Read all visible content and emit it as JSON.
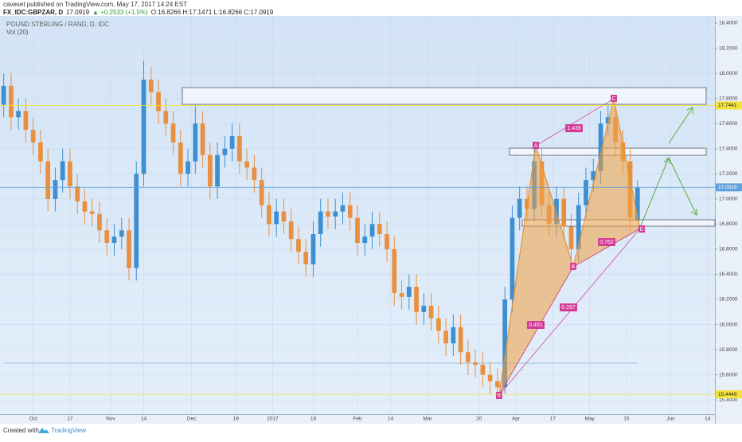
{
  "header": {
    "publisher": "caveset published on TradingView.com, May 17, 2017 14:24 EST",
    "symbol": "FX_IDC:GBPZAR, D",
    "last": "17.0919",
    "change": "▲ +0.2533 (+1.5%)",
    "ohlc": "O:16.8266 H:17.1471 L:16.8266 C:17.0919"
  },
  "chart_data": {
    "type": "candlestick",
    "title": "POUND STERLING / RAND, D, IDC",
    "subtitle": "Vol (20)",
    "up_color": "#3d8fd1",
    "down_color": "#e8903f",
    "x": [
      0,
      2,
      4,
      6,
      8,
      10,
      12,
      14,
      16,
      18,
      20,
      22,
      24,
      26,
      28,
      30,
      32,
      34,
      36,
      38,
      40,
      42,
      44,
      46,
      48,
      50,
      52,
      54,
      56,
      58,
      60,
      62,
      64,
      66,
      68,
      70,
      72,
      74,
      76,
      78,
      80,
      82,
      84,
      86,
      88,
      90,
      92,
      94,
      96,
      98,
      100,
      102,
      104,
      106,
      108,
      110,
      112,
      114,
      116,
      118,
      120,
      122,
      124,
      126,
      128,
      130,
      132,
      134,
      136,
      138,
      140,
      142,
      144,
      146,
      148,
      150,
      152,
      154,
      156,
      158,
      160,
      162,
      164,
      166,
      168,
      170,
      172
    ],
    "open": [
      17.75,
      17.9,
      17.65,
      17.7,
      17.55,
      17.45,
      17.3,
      17.0,
      17.15,
      17.3,
      17.1,
      16.98,
      16.9,
      16.88,
      16.75,
      16.65,
      16.7,
      16.75,
      16.45,
      17.2,
      17.95,
      17.85,
      17.7,
      17.6,
      17.45,
      17.2,
      17.3,
      17.6,
      17.35,
      17.1,
      17.35,
      17.4,
      17.5,
      17.3,
      17.25,
      17.15,
      16.95,
      16.8,
      16.9,
      16.82,
      16.68,
      16.58,
      16.48,
      16.72,
      16.9,
      16.86,
      16.9,
      16.95,
      16.85,
      16.65,
      16.7,
      16.8,
      16.72,
      16.6,
      16.25,
      16.22,
      16.3,
      16.1,
      16.15,
      16.05,
      15.95,
      15.85,
      15.98,
      15.78,
      15.7,
      15.68,
      15.6,
      15.55,
      15.5,
      16.2,
      16.85,
      17.0,
      16.92,
      17.3,
      16.95,
      16.8,
      17.0,
      16.78,
      16.6,
      16.95,
      17.15,
      17.22,
      17.6,
      17.65,
      17.45,
      17.3,
      16.8266
    ],
    "high": [
      18.0,
      18.0,
      17.8,
      17.8,
      17.65,
      17.55,
      17.4,
      17.25,
      17.4,
      17.4,
      17.2,
      17.08,
      17.0,
      16.98,
      16.85,
      16.8,
      16.85,
      16.85,
      17.3,
      18.1,
      18.05,
      17.95,
      17.8,
      17.7,
      17.55,
      17.4,
      17.75,
      17.7,
      17.45,
      17.45,
      17.5,
      17.6,
      17.6,
      17.4,
      17.35,
      17.25,
      17.05,
      17.0,
      17.0,
      16.92,
      16.78,
      16.68,
      16.82,
      17.0,
      17.0,
      17.0,
      17.05,
      17.05,
      16.95,
      16.8,
      16.9,
      16.9,
      16.82,
      16.7,
      16.35,
      16.4,
      16.4,
      16.25,
      16.25,
      16.15,
      16.05,
      16.08,
      16.08,
      15.88,
      15.8,
      15.78,
      15.7,
      15.65,
      16.3,
      16.95,
      17.1,
      17.1,
      17.4,
      17.4,
      17.05,
      17.1,
      17.1,
      16.88,
      17.05,
      17.25,
      17.32,
      17.7,
      17.7441,
      17.75,
      17.55,
      17.4,
      17.1471
    ],
    "low": [
      17.65,
      17.55,
      17.55,
      17.45,
      17.35,
      17.2,
      16.9,
      16.9,
      17.05,
      17.0,
      16.88,
      16.8,
      16.78,
      16.65,
      16.55,
      16.55,
      16.6,
      16.35,
      16.35,
      17.1,
      17.75,
      17.6,
      17.5,
      17.35,
      17.1,
      17.1,
      17.2,
      17.25,
      17.0,
      17.0,
      17.25,
      17.3,
      17.2,
      17.15,
      17.05,
      16.85,
      16.7,
      16.7,
      16.72,
      16.58,
      16.48,
      16.38,
      16.38,
      16.62,
      16.76,
      16.76,
      16.8,
      16.75,
      16.55,
      16.55,
      16.6,
      16.62,
      16.5,
      16.15,
      16.12,
      16.12,
      16.0,
      16.0,
      15.95,
      15.85,
      15.75,
      15.75,
      15.68,
      15.6,
      15.58,
      15.5,
      15.45,
      15.4449,
      15.45,
      16.1,
      16.75,
      16.82,
      16.82,
      16.85,
      16.7,
      16.7,
      16.68,
      16.5,
      16.5,
      16.85,
      17.05,
      17.12,
      17.5,
      17.35,
      17.2,
      16.75,
      16.8266
    ],
    "close": [
      17.9,
      17.65,
      17.7,
      17.55,
      17.45,
      17.3,
      17.0,
      17.15,
      17.3,
      17.1,
      16.98,
      16.9,
      16.88,
      16.75,
      16.65,
      16.7,
      16.75,
      16.45,
      17.2,
      17.95,
      17.85,
      17.7,
      17.6,
      17.45,
      17.2,
      17.3,
      17.6,
      17.35,
      17.1,
      17.35,
      17.4,
      17.5,
      17.3,
      17.25,
      17.15,
      16.95,
      16.8,
      16.9,
      16.82,
      16.68,
      16.58,
      16.48,
      16.72,
      16.9,
      16.86,
      16.9,
      16.95,
      16.85,
      16.65,
      16.7,
      16.8,
      16.72,
      16.6,
      16.25,
      16.22,
      16.3,
      16.1,
      16.15,
      16.05,
      15.95,
      15.85,
      15.98,
      15.78,
      15.7,
      15.68,
      15.6,
      15.55,
      15.5,
      16.2,
      16.85,
      17.0,
      16.92,
      17.3,
      16.95,
      16.8,
      17.0,
      16.78,
      16.6,
      16.95,
      17.15,
      17.22,
      17.6,
      17.65,
      17.45,
      17.3,
      16.85,
      17.0919
    ],
    "xlim": [
      -1,
      193
    ],
    "xticks": [
      {
        "value": 8,
        "label": "Oct"
      },
      {
        "value": 18,
        "label": "17"
      },
      {
        "value": 29,
        "label": "Nov"
      },
      {
        "value": 38,
        "label": "14"
      },
      {
        "value": 51,
        "label": "Dec"
      },
      {
        "value": 63,
        "label": "19"
      },
      {
        "value": 73,
        "label": "2017"
      },
      {
        "value": 84,
        "label": "16"
      },
      {
        "value": 96,
        "label": "Feb"
      },
      {
        "value": 105,
        "label": "14"
      },
      {
        "value": 115,
        "label": "Mar"
      },
      {
        "value": 129,
        "label": "20"
      },
      {
        "value": 139,
        "label": "Apr"
      },
      {
        "value": 149,
        "label": "17"
      },
      {
        "value": 159,
        "label": "May"
      },
      {
        "value": 169,
        "label": "15"
      },
      {
        "value": 181,
        "label": "Jun"
      },
      {
        "value": 191,
        "label": "14"
      }
    ],
    "ylim": [
      15.287,
      18.457
    ],
    "yticks": [
      {
        "value": 18.4,
        "label": "18.4000"
      },
      {
        "value": 18.2,
        "label": "18.2000"
      },
      {
        "value": 18.0,
        "label": "18.0000"
      },
      {
        "value": 17.8,
        "label": "17.8000"
      },
      {
        "value": 17.6,
        "label": "17.6000"
      },
      {
        "value": 17.4,
        "label": "17.4000"
      },
      {
        "value": 17.2,
        "label": "17.2000"
      },
      {
        "value": 17.0,
        "label": "17.0000"
      },
      {
        "value": 16.8,
        "label": "16.8000"
      },
      {
        "value": 16.6,
        "label": "16.6000"
      },
      {
        "value": 16.4,
        "label": "16.4000"
      },
      {
        "value": 16.2,
        "label": "16.2000"
      },
      {
        "value": 16.0,
        "label": "16.0000"
      },
      {
        "value": 15.8,
        "label": "15.8000"
      },
      {
        "value": 15.6,
        "label": "15.6000"
      },
      {
        "value": 15.4,
        "label": "15.4000"
      }
    ],
    "price_lines": [
      {
        "value": 17.7441,
        "color": "#f3e33a"
      },
      {
        "value": 17.0919,
        "color": "#5fa2dd"
      },
      {
        "value": 15.4449,
        "color": "#f3e33a"
      }
    ]
  },
  "annotations": {
    "points": [
      "X",
      "A",
      "B",
      "C",
      "D"
    ],
    "ratios": [
      "1.439",
      "0.451",
      "0.297",
      "0.762"
    ]
  },
  "footer": {
    "created": "Created with",
    "brand": "TradingView"
  }
}
